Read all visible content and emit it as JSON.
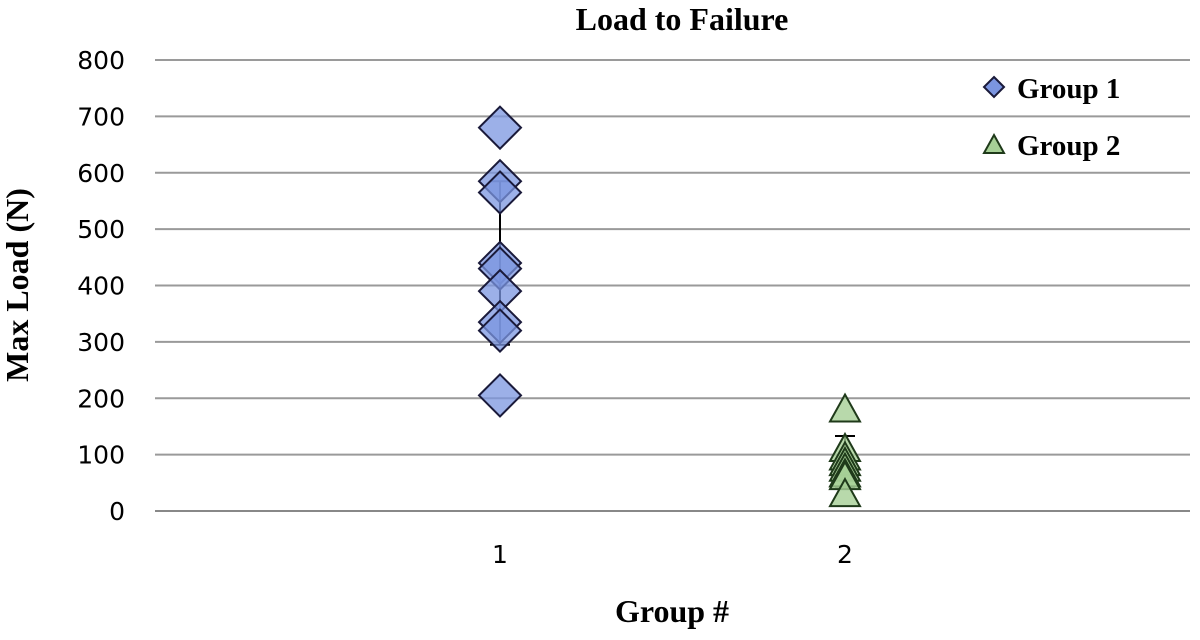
{
  "chart_data": {
    "type": "scatter",
    "title": "Load to Failure",
    "xlabel": "Group #",
    "ylabel": "Max Load (N)",
    "ylim": [
      0,
      800
    ],
    "yticks": [
      "0",
      "100",
      "200",
      "300",
      "400",
      "500",
      "600",
      "700",
      "800"
    ],
    "xticks": [
      "1",
      "2"
    ],
    "xlim": [
      0,
      3
    ],
    "grid": true,
    "legend_position": "top-right",
    "series": [
      {
        "name": "Group 1",
        "marker": "diamond",
        "color": "#7b95e0",
        "x": [
          1,
          1,
          1,
          1,
          1,
          1,
          1,
          1,
          1
        ],
        "y": [
          680,
          585,
          565,
          440,
          430,
          390,
          335,
          320,
          205
        ],
        "mean": 440,
        "error": 145
      },
      {
        "name": "Group 2",
        "marker": "triangle",
        "color": "#a6d096",
        "x": [
          2,
          2,
          2,
          2,
          2,
          2,
          2,
          2
        ],
        "y": [
          180,
          110,
          95,
          85,
          75,
          65,
          60,
          30
        ],
        "mean": 88,
        "error": 45
      }
    ]
  }
}
